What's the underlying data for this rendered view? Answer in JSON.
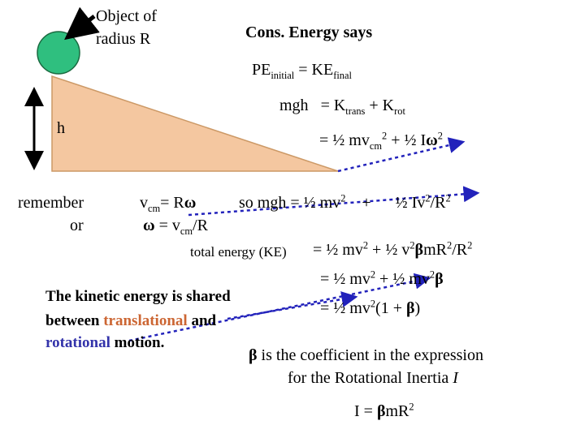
{
  "colors": {
    "incline_fill": "#f4c7a0",
    "incline_edge": "#cc9966",
    "ball_fill": "#2fbf7f",
    "ball_edge": "#1a6a40",
    "arrow_blue": "#2222bb",
    "highlight_orange": "#cc6633",
    "highlight_blue": "#3333aa"
  },
  "object_label": {
    "line1": "Object of",
    "line2": "radius R"
  },
  "height_label": "h",
  "conservation": {
    "heading": "Cons. Energy says",
    "pe": "PE",
    "pe_sub": "initial",
    "eq1": " = KE",
    "ke_sub": "final",
    "mgh_lhs": "mgh",
    "mgh_eq": "= K",
    "trans_sub": "trans",
    "plus_k": " + K",
    "rot_sub": "rot",
    "line3_a": "= ½ mv",
    "cm_sub": "cm",
    "sq": "2",
    "line3_b": " +  ½ I",
    "omega": "ω",
    "sq2": "2"
  },
  "remember": {
    "word1": "remember",
    "word2": "or"
  },
  "relation": {
    "line1_a": "v",
    "cm_sub": "cm",
    "line1_b": "= R",
    "omega": "ω",
    "line2_omega": "ω",
    "line2_b": " = v",
    "line2_sub": "cm",
    "line2_c": "/R"
  },
  "so_line": {
    "a": "so  mgh  = ½ mv",
    "sq": "2",
    "plus": "+",
    "half": "½  I",
    "v": "v",
    "v_sq": "2",
    "r": "/R",
    "r_sq": "2"
  },
  "total": {
    "label": "total energy  (KE)",
    "l1_a": " = ½ mv",
    "l1_sq": "2",
    "l1_b": " + ½ v",
    "l1_sq2": "2",
    "beta": "β",
    "l1_c": "mR",
    "l1_sq3": "2",
    "l1_d": "/R",
    "l1_sq4": "2",
    "l2_a": "= ½ mv",
    "l2_sq": "2",
    "l2_b": " + ½ mv",
    "l2_sq2": "2",
    "l3_a": "= ½ mv",
    "l3_sq": "2",
    "l3_b": "(1 + ",
    "l3_c": ")"
  },
  "shared": {
    "l1": "The kinetic energy is shared",
    "l2_a": "between ",
    "l2_orange": "translational",
    "l2_b": " and",
    "l3_blue": "rotational",
    "l3_b": " motion."
  },
  "beta_note": {
    "beta": "β",
    "l1": " is the coefficient in the expression",
    "l2": "for the Rotational Inertia ",
    "I": "I"
  },
  "inertia": {
    "a": "I = ",
    "beta": "β",
    "b": "mR",
    "sq": "2"
  }
}
